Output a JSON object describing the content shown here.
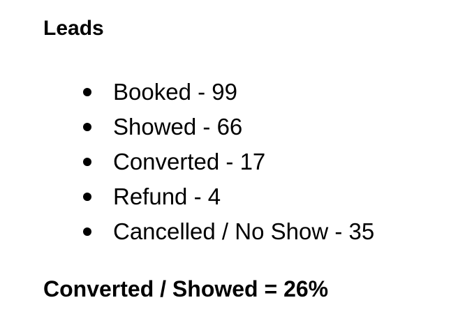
{
  "title": "Leads",
  "items": [
    "Booked - 99",
    "Showed - 66",
    "Converted - 17",
    "Refund - 4",
    "Cancelled / No Show - 35"
  ],
  "summary": "Converted / Showed = 26%"
}
